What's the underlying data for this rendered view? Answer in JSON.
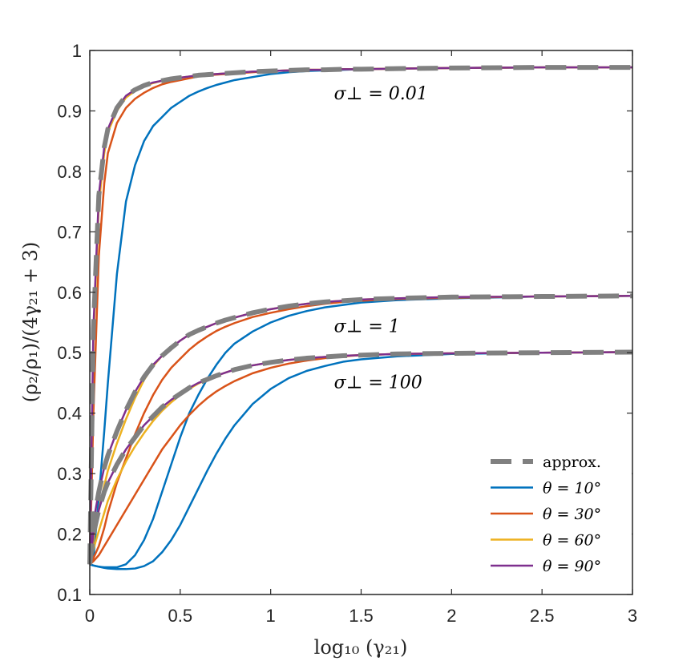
{
  "chart_data": {
    "type": "line",
    "title": "",
    "xlabel": "log₁₀ (γ₂₁)",
    "ylabel": "(ρ₂/ρ₁)/(4γ₂₁ + 3)",
    "xlim": [
      0,
      3
    ],
    "ylim": [
      0.1,
      1
    ],
    "xticks": [
      0,
      0.5,
      1,
      1.5,
      2,
      2.5,
      3
    ],
    "xtick_labels": [
      "0",
      "0.5",
      "1",
      "1.5",
      "2",
      "2.5",
      "3"
    ],
    "yticks": [
      0.1,
      0.2,
      0.3,
      0.4,
      0.5,
      0.6,
      0.7,
      0.8,
      0.9,
      1
    ],
    "ytick_labels": [
      "0.1",
      "0.2",
      "0.3",
      "0.4",
      "0.5",
      "0.6",
      "0.7",
      "0.8",
      "0.9",
      "1"
    ],
    "grid": false,
    "legend_position": "bottom-right",
    "legend": [
      {
        "label": "approx.",
        "color": "#808080",
        "style": "dashed"
      },
      {
        "label": "θ = 10°",
        "color": "#0072BD",
        "style": "solid"
      },
      {
        "label": "θ = 30°",
        "color": "#D95319",
        "style": "solid"
      },
      {
        "label": "θ = 60°",
        "color": "#EDB120",
        "style": "solid"
      },
      {
        "label": "θ = 90°",
        "color": "#7E2F8E",
        "style": "solid"
      }
    ],
    "annotations": [
      {
        "text": "σ⊥ = 0.01",
        "x": 1.35,
        "y": 0.93
      },
      {
        "text": "σ⊥ = 1",
        "x": 1.35,
        "y": 0.545
      },
      {
        "text": "σ⊥ = 100",
        "x": 1.35,
        "y": 0.452
      }
    ],
    "x": [
      0,
      0.02,
      0.05,
      0.08,
      0.1,
      0.15,
      0.2,
      0.25,
      0.3,
      0.35,
      0.4,
      0.45,
      0.5,
      0.55,
      0.6,
      0.65,
      0.7,
      0.75,
      0.8,
      0.9,
      1.0,
      1.1,
      1.2,
      1.3,
      1.4,
      1.5,
      1.7,
      2.0,
      2.5,
      3.0
    ],
    "series": [
      {
        "name": "approx. σ⊥=0.01",
        "group": "approx.",
        "sigma": "0.01",
        "values": [
          0.15,
          0.54,
          0.76,
          0.84,
          0.87,
          0.905,
          0.925,
          0.935,
          0.942,
          0.947,
          0.95,
          0.953,
          0.955,
          0.957,
          0.959,
          0.96,
          0.961,
          0.962,
          0.963,
          0.965,
          0.966,
          0.967,
          0.968,
          0.968,
          0.969,
          0.969,
          0.97,
          0.971,
          0.972,
          0.972
        ]
      },
      {
        "name": "approx. σ⊥=1",
        "group": "approx.",
        "sigma": "1",
        "values": [
          0.15,
          0.22,
          0.27,
          0.31,
          0.33,
          0.37,
          0.405,
          0.435,
          0.46,
          0.48,
          0.495,
          0.508,
          0.52,
          0.53,
          0.537,
          0.543,
          0.549,
          0.554,
          0.558,
          0.566,
          0.572,
          0.577,
          0.581,
          0.584,
          0.586,
          0.588,
          0.59,
          0.592,
          0.593,
          0.594
        ]
      },
      {
        "name": "approx. σ⊥=100",
        "group": "approx.",
        "sigma": "100",
        "values": [
          0.15,
          0.2,
          0.24,
          0.27,
          0.285,
          0.315,
          0.34,
          0.36,
          0.38,
          0.395,
          0.41,
          0.422,
          0.432,
          0.442,
          0.45,
          0.456,
          0.462,
          0.467,
          0.472,
          0.479,
          0.484,
          0.488,
          0.491,
          0.493,
          0.495,
          0.496,
          0.498,
          0.499,
          0.5,
          0.501
        ]
      },
      {
        "name": "θ = 10°, σ⊥=0.01",
        "group": "θ = 10°",
        "sigma": "0.01",
        "values": [
          0.15,
          0.16,
          0.26,
          0.37,
          0.45,
          0.63,
          0.75,
          0.81,
          0.85,
          0.875,
          0.89,
          0.905,
          0.915,
          0.925,
          0.932,
          0.938,
          0.943,
          0.947,
          0.951,
          0.956,
          0.961,
          0.964,
          0.966,
          0.967,
          0.968,
          0.969,
          0.97,
          0.971,
          0.972,
          0.972
        ]
      },
      {
        "name": "θ = 10°, σ⊥=1",
        "group": "θ = 10°",
        "sigma": "1",
        "values": [
          0.15,
          0.148,
          0.146,
          0.145,
          0.145,
          0.145,
          0.15,
          0.165,
          0.19,
          0.225,
          0.27,
          0.315,
          0.36,
          0.4,
          0.43,
          0.457,
          0.48,
          0.5,
          0.515,
          0.535,
          0.55,
          0.561,
          0.569,
          0.575,
          0.579,
          0.583,
          0.587,
          0.59,
          0.593,
          0.594
        ]
      },
      {
        "name": "θ = 10°, σ⊥=100",
        "group": "θ = 10°",
        "sigma": "100",
        "values": [
          0.15,
          0.148,
          0.146,
          0.144,
          0.143,
          0.142,
          0.142,
          0.143,
          0.147,
          0.155,
          0.17,
          0.19,
          0.215,
          0.245,
          0.275,
          0.305,
          0.333,
          0.358,
          0.38,
          0.415,
          0.44,
          0.458,
          0.47,
          0.478,
          0.485,
          0.489,
          0.494,
          0.498,
          0.5,
          0.501
        ]
      },
      {
        "name": "θ = 30°, σ⊥=0.01",
        "group": "θ = 30°",
        "sigma": "0.01",
        "values": [
          0.15,
          0.4,
          0.66,
          0.78,
          0.83,
          0.88,
          0.905,
          0.92,
          0.93,
          0.938,
          0.944,
          0.948,
          0.951,
          0.954,
          0.957,
          0.959,
          0.96,
          0.961,
          0.962,
          0.964,
          0.966,
          0.967,
          0.968,
          0.968,
          0.969,
          0.969,
          0.97,
          0.971,
          0.972,
          0.972
        ]
      },
      {
        "name": "θ = 30°, σ⊥=1",
        "group": "θ = 30°",
        "sigma": "1",
        "values": [
          0.15,
          0.16,
          0.18,
          0.21,
          0.235,
          0.285,
          0.325,
          0.365,
          0.4,
          0.43,
          0.455,
          0.475,
          0.49,
          0.505,
          0.517,
          0.527,
          0.536,
          0.543,
          0.549,
          0.559,
          0.566,
          0.572,
          0.577,
          0.581,
          0.584,
          0.586,
          0.589,
          0.591,
          0.593,
          0.594
        ]
      },
      {
        "name": "θ = 30°, σ⊥=100",
        "group": "θ = 30°",
        "sigma": "100",
        "values": [
          0.15,
          0.155,
          0.165,
          0.18,
          0.19,
          0.215,
          0.24,
          0.265,
          0.29,
          0.315,
          0.34,
          0.36,
          0.38,
          0.397,
          0.412,
          0.425,
          0.436,
          0.445,
          0.453,
          0.466,
          0.475,
          0.482,
          0.487,
          0.491,
          0.494,
          0.496,
          0.498,
          0.499,
          0.5,
          0.501
        ]
      },
      {
        "name": "θ = 60°, σ⊥=0.01",
        "group": "θ = 60°",
        "sigma": "0.01",
        "values": [
          0.15,
          0.52,
          0.745,
          0.83,
          0.865,
          0.9,
          0.922,
          0.933,
          0.941,
          0.946,
          0.95,
          0.953,
          0.955,
          0.957,
          0.959,
          0.96,
          0.961,
          0.962,
          0.963,
          0.965,
          0.966,
          0.967,
          0.968,
          0.968,
          0.969,
          0.969,
          0.97,
          0.971,
          0.972,
          0.972
        ]
      },
      {
        "name": "θ = 60°, σ⊥=1",
        "group": "θ = 60°",
        "sigma": "1",
        "values": [
          0.15,
          0.19,
          0.24,
          0.28,
          0.305,
          0.35,
          0.39,
          0.425,
          0.455,
          0.478,
          0.495,
          0.508,
          0.52,
          0.53,
          0.537,
          0.543,
          0.549,
          0.554,
          0.558,
          0.566,
          0.572,
          0.577,
          0.581,
          0.584,
          0.586,
          0.588,
          0.59,
          0.592,
          0.593,
          0.594
        ]
      },
      {
        "name": "θ = 60°, σ⊥=100",
        "group": "θ = 60°",
        "sigma": "100",
        "values": [
          0.15,
          0.175,
          0.205,
          0.235,
          0.255,
          0.29,
          0.32,
          0.345,
          0.367,
          0.387,
          0.404,
          0.418,
          0.43,
          0.44,
          0.449,
          0.456,
          0.462,
          0.467,
          0.472,
          0.479,
          0.484,
          0.488,
          0.491,
          0.493,
          0.495,
          0.496,
          0.498,
          0.499,
          0.5,
          0.501
        ]
      },
      {
        "name": "θ = 90°, σ⊥=0.01",
        "group": "θ = 90°",
        "sigma": "0.01",
        "values": [
          0.15,
          0.54,
          0.76,
          0.84,
          0.87,
          0.905,
          0.925,
          0.935,
          0.942,
          0.947,
          0.95,
          0.953,
          0.955,
          0.957,
          0.959,
          0.96,
          0.961,
          0.962,
          0.963,
          0.965,
          0.966,
          0.967,
          0.968,
          0.968,
          0.969,
          0.969,
          0.97,
          0.971,
          0.972,
          0.972
        ]
      },
      {
        "name": "θ = 90°, σ⊥=1",
        "group": "θ = 90°",
        "sigma": "1",
        "values": [
          0.15,
          0.22,
          0.27,
          0.31,
          0.33,
          0.37,
          0.405,
          0.435,
          0.46,
          0.48,
          0.495,
          0.508,
          0.52,
          0.53,
          0.537,
          0.543,
          0.549,
          0.554,
          0.558,
          0.566,
          0.572,
          0.577,
          0.581,
          0.584,
          0.586,
          0.588,
          0.59,
          0.592,
          0.593,
          0.594
        ]
      },
      {
        "name": "θ = 90°, σ⊥=100",
        "group": "θ = 90°",
        "sigma": "100",
        "values": [
          0.15,
          0.2,
          0.24,
          0.27,
          0.285,
          0.315,
          0.34,
          0.36,
          0.38,
          0.395,
          0.41,
          0.422,
          0.432,
          0.442,
          0.45,
          0.456,
          0.462,
          0.467,
          0.472,
          0.479,
          0.484,
          0.488,
          0.491,
          0.493,
          0.495,
          0.496,
          0.498,
          0.499,
          0.5,
          0.501
        ]
      }
    ]
  }
}
